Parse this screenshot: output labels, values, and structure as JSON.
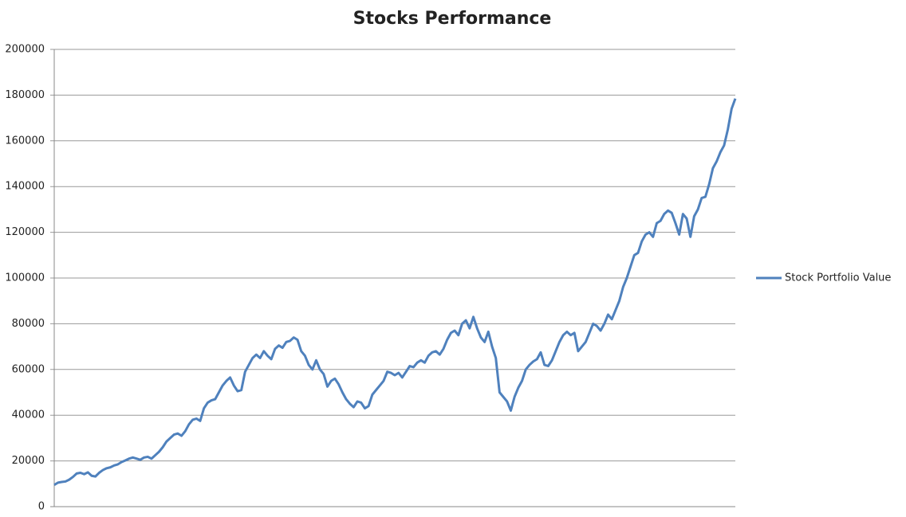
{
  "chart_data": {
    "type": "line",
    "title": "Stocks Performance",
    "series": [
      {
        "name": "Stock Portfolio Value",
        "color": "#4f81bd",
        "values": [
          9500,
          10500,
          10800,
          11000,
          11800,
          13000,
          14500,
          14800,
          14200,
          15000,
          13500,
          13200,
          14800,
          16000,
          16800,
          17200,
          18000,
          18500,
          19500,
          20200,
          21000,
          21500,
          21000,
          20500,
          21500,
          21800,
          21000,
          22500,
          24000,
          26000,
          28500,
          30000,
          31500,
          32000,
          31000,
          33000,
          36000,
          38000,
          38500,
          37500,
          43000,
          45500,
          46500,
          47000,
          50000,
          53000,
          55000,
          56500,
          53000,
          50500,
          51000,
          59000,
          62000,
          65000,
          66500,
          65000,
          68000,
          66000,
          64500,
          69000,
          70500,
          69500,
          72000,
          72500,
          74000,
          73000,
          68000,
          66000,
          62000,
          60000,
          64000,
          60000,
          58000,
          52500,
          55000,
          56000,
          53500,
          50000,
          47000,
          45000,
          43500,
          46000,
          45500,
          43000,
          44000,
          49000,
          51000,
          53000,
          55000,
          59000,
          58500,
          57500,
          58500,
          56500,
          59000,
          61500,
          61000,
          63000,
          64000,
          63000,
          66000,
          67500,
          68000,
          66500,
          69000,
          73000,
          76000,
          77000,
          75000,
          80000,
          81500,
          78000,
          83000,
          78000,
          74000,
          72000,
          76500,
          70000,
          65000,
          50000,
          48000,
          46000,
          42000,
          48000,
          52000,
          55000,
          60000,
          62000,
          63500,
          64500,
          67500,
          62000,
          61500,
          64000,
          68000,
          72000,
          75000,
          76500,
          75000,
          76000,
          68000,
          70000,
          72000,
          76000,
          80000,
          79000,
          77000,
          80000,
          84000,
          82000,
          86000,
          90000,
          96000,
          100000,
          105000,
          110000,
          111000,
          116000,
          119000,
          120000,
          118000,
          124000,
          125000,
          128000,
          129500,
          128500,
          124000,
          119000,
          128000,
          126000,
          118000,
          127000,
          130000,
          135000,
          135500,
          141000,
          148000,
          151000,
          155000,
          158000,
          165000,
          174000,
          178500
        ]
      }
    ],
    "ylim": [
      0,
      200000
    ],
    "yticks": [
      0,
      20000,
      40000,
      60000,
      80000,
      100000,
      120000,
      140000,
      160000,
      180000,
      200000
    ],
    "grid": true,
    "legend": "right"
  }
}
